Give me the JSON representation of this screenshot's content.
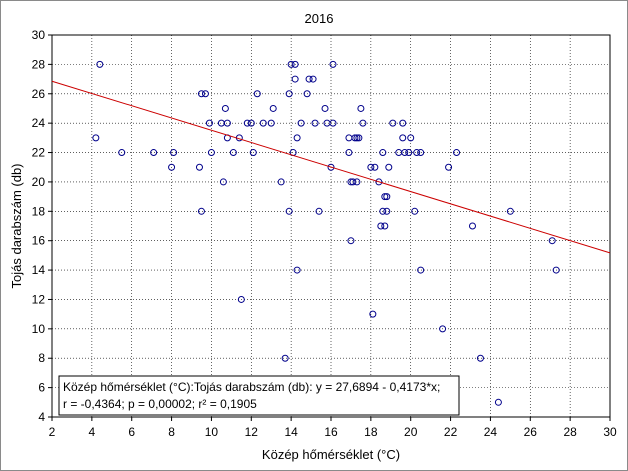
{
  "chart_data": {
    "type": "scatter",
    "title": "2016",
    "xlabel": "Közép hőmérséklet (°C)",
    "ylabel": "Tojás darabszám (db)",
    "xlim": [
      2,
      30
    ],
    "ylim": [
      4,
      30
    ],
    "xticks": [
      "2",
      "4",
      "6",
      "8",
      "10",
      "12",
      "14",
      "16",
      "18",
      "20",
      "22",
      "24",
      "26",
      "28",
      "30"
    ],
    "yticks": [
      "4",
      "6",
      "8",
      "10",
      "12",
      "14",
      "16",
      "18",
      "20",
      "22",
      "24",
      "26",
      "28",
      "30"
    ],
    "grid": true,
    "marker_color": "#00008b",
    "fit_line_color": "#cc0000",
    "fit": {
      "intercept": 27.6894,
      "slope": -0.4173
    },
    "legend_line1": "Közép hőmérséklet (°C):Tojás darabszám (db):   y = 27,6894 - 0,4173*x;",
    "legend_line2": "r = -0,4364; p = 0,00002; r² = 0,1905",
    "legend_position": "bottom-left",
    "points": [
      [
        4.2,
        23
      ],
      [
        4.4,
        28
      ],
      [
        5.5,
        22
      ],
      [
        7.1,
        22
      ],
      [
        8.0,
        21
      ],
      [
        8.1,
        22
      ],
      [
        9.4,
        21
      ],
      [
        9.5,
        18
      ],
      [
        9.5,
        26
      ],
      [
        9.7,
        26
      ],
      [
        9.9,
        24
      ],
      [
        10.0,
        22
      ],
      [
        10.5,
        24
      ],
      [
        10.6,
        20
      ],
      [
        10.7,
        25
      ],
      [
        10.8,
        24
      ],
      [
        10.8,
        23
      ],
      [
        11.1,
        22
      ],
      [
        11.4,
        23
      ],
      [
        11.5,
        12
      ],
      [
        11.8,
        24
      ],
      [
        12.0,
        24
      ],
      [
        12.1,
        22
      ],
      [
        12.3,
        26
      ],
      [
        12.6,
        24
      ],
      [
        13.0,
        24
      ],
      [
        13.1,
        25
      ],
      [
        13.5,
        20
      ],
      [
        13.7,
        8
      ],
      [
        13.9,
        18
      ],
      [
        13.9,
        26
      ],
      [
        14.0,
        28
      ],
      [
        14.1,
        22
      ],
      [
        14.2,
        28
      ],
      [
        14.2,
        27
      ],
      [
        14.3,
        23
      ],
      [
        14.3,
        14
      ],
      [
        14.5,
        24
      ],
      [
        14.8,
        26
      ],
      [
        14.9,
        27
      ],
      [
        15.1,
        27
      ],
      [
        15.2,
        24
      ],
      [
        15.4,
        18
      ],
      [
        15.7,
        25
      ],
      [
        15.8,
        24
      ],
      [
        16.0,
        21
      ],
      [
        16.1,
        28
      ],
      [
        16.1,
        24
      ],
      [
        16.9,
        22
      ],
      [
        16.9,
        23
      ],
      [
        17.0,
        16
      ],
      [
        17.0,
        20
      ],
      [
        17.1,
        20
      ],
      [
        17.2,
        23
      ],
      [
        17.3,
        20
      ],
      [
        17.3,
        23
      ],
      [
        17.4,
        23
      ],
      [
        17.5,
        25
      ],
      [
        17.6,
        24
      ],
      [
        18.0,
        21
      ],
      [
        18.1,
        11
      ],
      [
        18.2,
        21
      ],
      [
        18.4,
        20
      ],
      [
        18.5,
        17
      ],
      [
        18.6,
        18
      ],
      [
        18.6,
        22
      ],
      [
        18.7,
        19
      ],
      [
        18.7,
        17
      ],
      [
        18.8,
        18
      ],
      [
        18.8,
        19
      ],
      [
        18.9,
        21
      ],
      [
        19.1,
        24
      ],
      [
        19.4,
        22
      ],
      [
        19.6,
        24
      ],
      [
        19.6,
        23
      ],
      [
        19.7,
        22
      ],
      [
        19.9,
        22
      ],
      [
        20.0,
        23
      ],
      [
        20.2,
        18
      ],
      [
        20.3,
        22
      ],
      [
        20.5,
        14
      ],
      [
        20.5,
        22
      ],
      [
        21.6,
        10
      ],
      [
        21.9,
        21
      ],
      [
        22.3,
        22
      ],
      [
        23.1,
        17
      ],
      [
        23.5,
        8
      ],
      [
        24.4,
        5
      ],
      [
        25.0,
        18
      ],
      [
        27.1,
        16
      ],
      [
        27.3,
        14
      ]
    ]
  }
}
